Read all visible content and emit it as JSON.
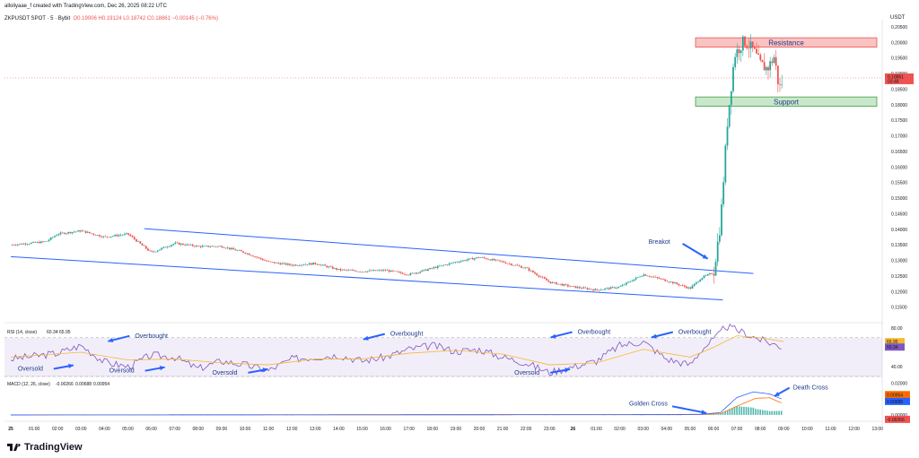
{
  "header": {
    "caption": "alloliyaae_f created with TradingView.com, Dec 26, 2025 08:22 UTC",
    "symbol": "ZKPUSDT SPOT · 5 · Bybit",
    "ohlc": "O0.19006  H0.19124  L0.18742  C0.18861  −0.00145 (−0.76%)",
    "currency": "USDT"
  },
  "brand": {
    "label": "TradingView"
  },
  "colors": {
    "up": "#26a69a",
    "down": "#ef5350",
    "channel": "#2962ff",
    "rsi": "#7e57c2",
    "rsi_ma": "#f7b733",
    "macd": "#2962ff",
    "signal": "#ff6d00",
    "arrow": "#2962ff"
  },
  "chart_data": [
    {
      "type": "candlestick",
      "title": "ZKPUSDT SPOT · 5 · Bybit",
      "ylim": [
        0.11,
        0.205
      ],
      "y_ticks": [
        "0.20500",
        "0.20000",
        "0.19500",
        "0.19000",
        "0.18500",
        "0.18000",
        "0.17500",
        "0.17000",
        "0.16500",
        "0.16000",
        "0.15500",
        "0.15000",
        "0.14500",
        "0.14000",
        "0.13500",
        "0.13000",
        "0.12500",
        "0.12000",
        "0.11500"
      ],
      "x_ticks": [
        "25",
        "01:00",
        "02:00",
        "03:00",
        "04:00",
        "05:00",
        "06:00",
        "07:00",
        "08:00",
        "09:00",
        "10:00",
        "11:00",
        "12:00",
        "13:00",
        "14:00",
        "15:00",
        "16:00",
        "17:00",
        "18:00",
        "19:00",
        "20:00",
        "21:00",
        "22:00",
        "23:00",
        "26",
        "01:00",
        "02:00",
        "03:00",
        "04:00",
        "05:00",
        "06:00",
        "07:00",
        "08:00",
        "09:00",
        "10:00",
        "11:00",
        "12:00",
        "13:00"
      ],
      "price_path": [
        [
          0,
          0.135
        ],
        [
          1.5,
          0.136
        ],
        [
          2,
          0.1385
        ],
        [
          3,
          0.1395
        ],
        [
          4,
          0.1375
        ],
        [
          5,
          0.1385
        ],
        [
          5.5,
          0.1355
        ],
        [
          6,
          0.1325
        ],
        [
          7,
          0.1355
        ],
        [
          8,
          0.1345
        ],
        [
          9,
          0.1345
        ],
        [
          10,
          0.1325
        ],
        [
          11,
          0.1295
        ],
        [
          12,
          0.1285
        ],
        [
          13,
          0.129
        ],
        [
          14,
          0.127
        ],
        [
          15,
          0.1265
        ],
        [
          16,
          0.1268
        ],
        [
          17,
          0.1255
        ],
        [
          18,
          0.1275
        ],
        [
          19,
          0.1295
        ],
        [
          20,
          0.131
        ],
        [
          21,
          0.1295
        ],
        [
          22,
          0.1275
        ],
        [
          23,
          0.123
        ],
        [
          24,
          0.1215
        ],
        [
          25,
          0.1205
        ],
        [
          26,
          0.1215
        ],
        [
          27,
          0.1255
        ],
        [
          28,
          0.1235
        ],
        [
          29,
          0.121
        ],
        [
          29.5,
          0.1245
        ],
        [
          30,
          0.126
        ],
        [
          30.3,
          0.142
        ],
        [
          30.6,
          0.175
        ],
        [
          30.9,
          0.196
        ],
        [
          31.3,
          0.2005
        ],
        [
          31.7,
          0.1975
        ],
        [
          32,
          0.193
        ],
        [
          32.3,
          0.1915
        ],
        [
          32.6,
          0.1955
        ],
        [
          32.8,
          0.185
        ],
        [
          33,
          0.1886
        ]
      ],
      "current_price": "0.18861",
      "price_tag_sub": "03:48",
      "zones": [
        {
          "label": "Resistance",
          "low": 0.1985,
          "high": 0.2015
        },
        {
          "label": "Support",
          "low": 0.1795,
          "high": 0.1825
        }
      ],
      "channel": [
        {
          "x": [
            5.7,
            31.7
          ],
          "y": [
            0.1402,
            0.1258
          ]
        },
        {
          "x": [
            0,
            30.4
          ],
          "y": [
            0.1312,
            0.1173
          ]
        }
      ],
      "annotations": [
        {
          "text": "Breakot",
          "x": 28.3,
          "y": 0.1345
        }
      ]
    },
    {
      "type": "line",
      "title": "RSI (14, close)",
      "legend_values": [
        "60.34",
        "65.95"
      ],
      "ylim": [
        30,
        80
      ],
      "y_ticks": [
        "80.00",
        "40.00"
      ],
      "band": [
        30,
        70
      ],
      "axis_badges": [
        "65.95",
        "60.34"
      ],
      "rsi_path": [
        [
          0,
          48
        ],
        [
          2,
          54
        ],
        [
          3,
          62
        ],
        [
          4,
          45
        ],
        [
          5,
          40
        ],
        [
          6,
          52
        ],
        [
          7,
          50
        ],
        [
          8,
          38
        ],
        [
          9,
          46
        ],
        [
          10,
          42
        ],
        [
          11,
          36
        ],
        [
          12,
          48
        ],
        [
          14,
          52
        ],
        [
          15,
          46
        ],
        [
          16,
          50
        ],
        [
          17,
          58
        ],
        [
          18,
          62
        ],
        [
          19,
          56
        ],
        [
          20,
          58
        ],
        [
          21,
          50
        ],
        [
          22,
          44
        ],
        [
          23,
          34
        ],
        [
          24,
          40
        ],
        [
          25,
          46
        ],
        [
          26,
          62
        ],
        [
          27,
          66
        ],
        [
          28,
          48
        ],
        [
          29,
          42
        ],
        [
          29.5,
          58
        ],
        [
          30.2,
          72
        ],
        [
          30.5,
          82
        ],
        [
          31,
          78
        ],
        [
          32,
          68
        ],
        [
          33,
          60
        ]
      ],
      "rsi_ma_path": [
        [
          0,
          50
        ],
        [
          3,
          55
        ],
        [
          5,
          47
        ],
        [
          7,
          48
        ],
        [
          9,
          44
        ],
        [
          11,
          42
        ],
        [
          13,
          48
        ],
        [
          15,
          48
        ],
        [
          17,
          54
        ],
        [
          19,
          57
        ],
        [
          21,
          53
        ],
        [
          23,
          42
        ],
        [
          25,
          44
        ],
        [
          27,
          58
        ],
        [
          29,
          50
        ],
        [
          30,
          60
        ],
        [
          31,
          72
        ],
        [
          32,
          70
        ],
        [
          33,
          66
        ]
      ],
      "annotations": [
        {
          "text": "Overbought",
          "x": 5.3,
          "y": 70
        },
        {
          "text": "Oversold",
          "x": 0.3,
          "y": 36
        },
        {
          "text": "Oversold",
          "x": 4.2,
          "y": 34
        },
        {
          "text": "Oversold",
          "x": 8.6,
          "y": 32
        },
        {
          "text": "Overbought",
          "x": 16.2,
          "y": 72
        },
        {
          "text": "Oversold",
          "x": 21.5,
          "y": 32
        },
        {
          "text": "Overbought",
          "x": 24.2,
          "y": 74
        },
        {
          "text": "Overbought",
          "x": 28.5,
          "y": 74
        }
      ]
    },
    {
      "type": "line",
      "title": "MACD (12, 26, close)",
      "legend_values": [
        "-0.00266",
        "0.00688",
        "0.00954"
      ],
      "y_ticks": [
        "0.02000",
        "0.00000"
      ],
      "axis_badges": [
        "0.00954",
        "0.00688",
        "-0.00266"
      ],
      "macd_path": [
        [
          0,
          0
        ],
        [
          28,
          0.0002
        ],
        [
          29.5,
          0.0004
        ],
        [
          30.3,
          0.0015
        ],
        [
          31,
          0.011
        ],
        [
          31.7,
          0.0145
        ],
        [
          32.4,
          0.0132
        ],
        [
          33,
          0.0095
        ]
      ],
      "signal_path": [
        [
          0,
          0
        ],
        [
          28,
          0.0001
        ],
        [
          29.5,
          0.0003
        ],
        [
          30.3,
          0.0008
        ],
        [
          31,
          0.0055
        ],
        [
          31.8,
          0.0105
        ],
        [
          32.4,
          0.0108
        ],
        [
          33,
          0.0069
        ]
      ],
      "annotations": [
        {
          "text": "Golden Cross",
          "x": 26.4,
          "y": 0.006
        },
        {
          "text": "Death Cross",
          "x": 33.4,
          "y": 0.016
        }
      ]
    }
  ]
}
